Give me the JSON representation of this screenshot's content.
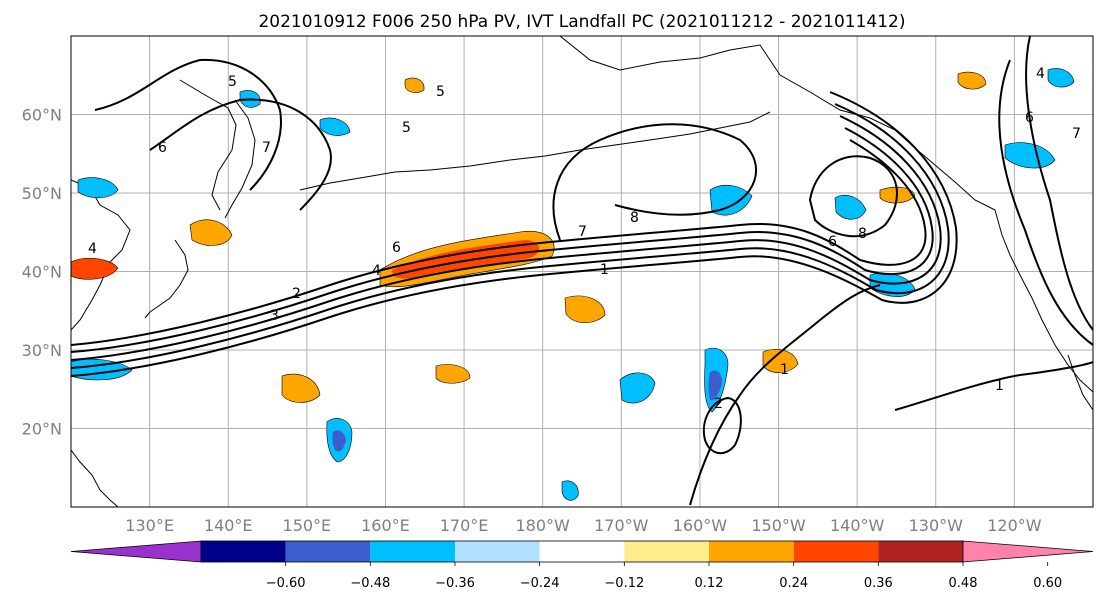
{
  "title": "2021010912 F006 250 hPa PV, IVT Landfall PC (2021011212 - 2021011412)",
  "map": {
    "lat_range": [
      10,
      70
    ],
    "lon_range": [
      120,
      250
    ],
    "lat_ticks": [
      {
        "value": 20,
        "label": "20°N"
      },
      {
        "value": 30,
        "label": "30°N"
      },
      {
        "value": 40,
        "label": "40°N"
      },
      {
        "value": 50,
        "label": "50°N"
      },
      {
        "value": 60,
        "label": "60°N"
      }
    ],
    "lon_ticks": [
      {
        "value": 130,
        "label": "130°E"
      },
      {
        "value": 140,
        "label": "140°E"
      },
      {
        "value": 150,
        "label": "150°E"
      },
      {
        "value": 160,
        "label": "160°E"
      },
      {
        "value": 170,
        "label": "170°E"
      },
      {
        "value": 180,
        "label": "180°W"
      },
      {
        "value": 190,
        "label": "170°W"
      },
      {
        "value": 200,
        "label": "160°W"
      },
      {
        "value": 210,
        "label": "150°W"
      },
      {
        "value": 220,
        "label": "140°W"
      },
      {
        "value": 230,
        "label": "130°W"
      },
      {
        "value": 240,
        "label": "120°W"
      }
    ],
    "gridlines": true,
    "contour_labels": [
      "5",
      "5",
      "5",
      "6",
      "6",
      "7",
      "7",
      "4",
      "4",
      "3",
      "2",
      "1",
      "8",
      "8",
      "6",
      "1",
      "1",
      "2",
      "4",
      "7",
      "6"
    ]
  },
  "colorbar": {
    "colors": [
      "#9932cc",
      "#00008b",
      "#3a5fcd",
      "#00bfff",
      "#b0e2ff",
      "#ffffff",
      "#ffec8b",
      "#ffa500",
      "#ff4500",
      "#b22222",
      "#ff82ab"
    ],
    "ticks": [
      "−0.60",
      "−0.48",
      "−0.36",
      "−0.24",
      "−0.12",
      "0.12",
      "0.24",
      "0.36",
      "0.48",
      "0.60"
    ],
    "extend": "both"
  }
}
